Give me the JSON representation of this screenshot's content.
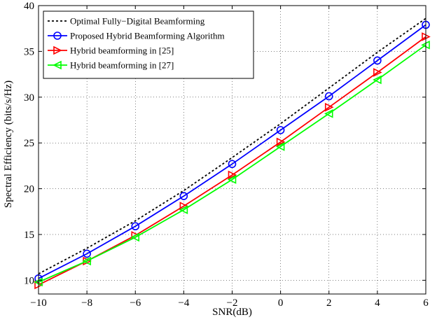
{
  "chart_data": {
    "type": "line",
    "title": "",
    "xlabel": "SNR(dB)",
    "ylabel": "Spectral Efficiency (bits/s/Hz)",
    "xlim": [
      -10,
      6
    ],
    "ylim": [
      8.5,
      40
    ],
    "x": [
      -10,
      -8,
      -6,
      -4,
      -2,
      0,
      2,
      4,
      6
    ],
    "xticks": [
      -10,
      -8,
      -6,
      -4,
      -2,
      0,
      2,
      4,
      6
    ],
    "yticks": [
      10,
      15,
      20,
      25,
      30,
      35,
      40
    ],
    "xtick_labels": [
      "−10",
      "−8",
      "−6",
      "−4",
      "−2",
      "0",
      "2",
      "4",
      "6"
    ],
    "ytick_labels": [
      "10",
      "15",
      "20",
      "25",
      "30",
      "35",
      "40"
    ],
    "grid": true,
    "legend_position": "top-left",
    "series": [
      {
        "name": "Optimal Fully−Digital Beamforming",
        "values": [
          10.7,
          13.5,
          16.5,
          19.8,
          23.4,
          27.1,
          31.0,
          34.9,
          38.6
        ],
        "color": "#000000",
        "dash": "dotted",
        "marker": "none"
      },
      {
        "name": "Proposed Hybrid Beamforming Algorithm",
        "values": [
          10.2,
          12.9,
          15.9,
          19.2,
          22.7,
          26.4,
          30.1,
          34.0,
          37.9
        ],
        "color": "#0000ff",
        "dash": "solid",
        "marker": "circle"
      },
      {
        "name": "Hybrid beamforming in [25]",
        "values": [
          9.5,
          12.1,
          14.9,
          18.1,
          21.5,
          25.1,
          28.9,
          32.7,
          36.6
        ],
        "color": "#ff0000",
        "dash": "solid",
        "marker": "triangle-right"
      },
      {
        "name": "Hybrid beamforming in [27]",
        "values": [
          9.8,
          12.1,
          14.7,
          17.7,
          21.0,
          24.6,
          28.2,
          31.9,
          35.7
        ],
        "color": "#00ff00",
        "dash": "solid",
        "marker": "triangle-left"
      }
    ]
  }
}
